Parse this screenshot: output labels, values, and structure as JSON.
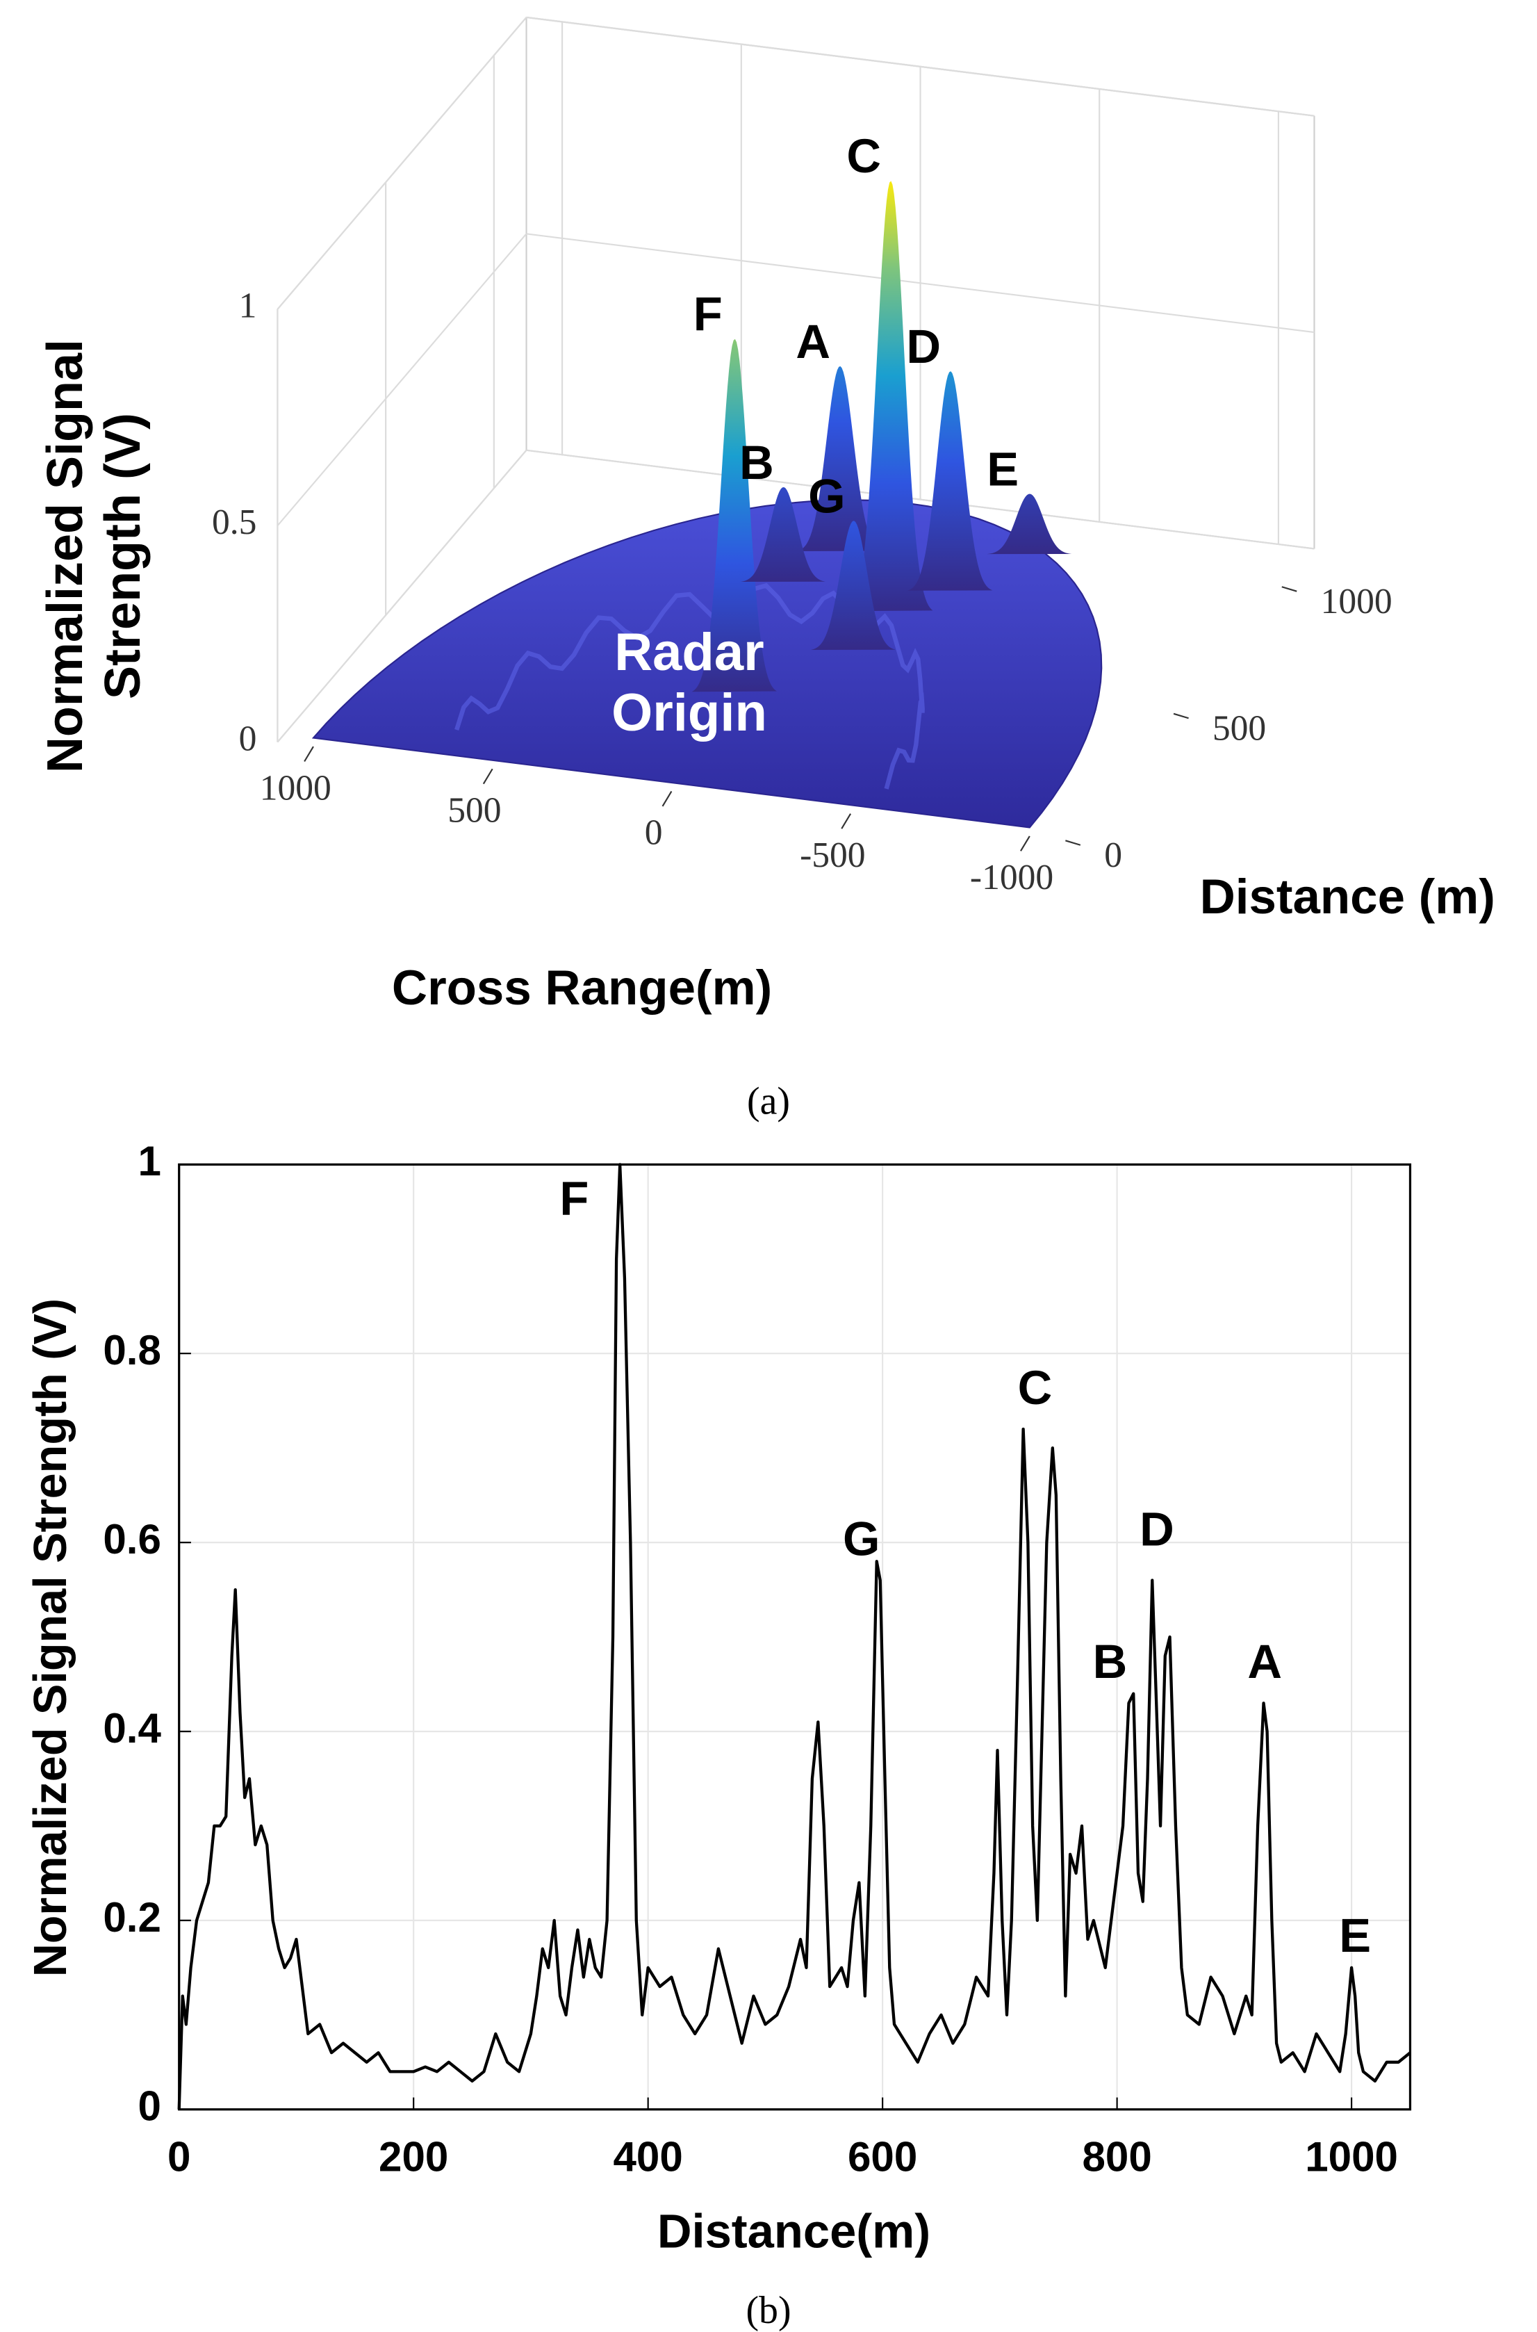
{
  "chart_data": [
    {
      "type": "surface3d",
      "caption": "(a)",
      "xlabel": "Cross Range(m)",
      "ylabel": "Distance (m)",
      "zlabel": "Normalized Signal Strength (V)",
      "xlim": [
        1100,
        -1100
      ],
      "ylim": [
        0,
        1150
      ],
      "zlim": [
        0,
        1
      ],
      "xticks": [
        1000,
        500,
        0,
        -500,
        -1000
      ],
      "yticks": [
        0,
        500,
        1000
      ],
      "zticks": [
        0,
        0.5,
        1
      ],
      "peaks": [
        {
          "label": "F",
          "x": 50,
          "y": 375,
          "z": 0.82,
          "label_color": "#000000"
        },
        {
          "label": "A",
          "x": 89,
          "y": 926,
          "z": 0.43,
          "label_color": "#000000"
        },
        {
          "label": "C",
          "x": -171,
          "y": 730,
          "z": 1.0,
          "label_color": "#000000"
        },
        {
          "label": "D",
          "x": -275,
          "y": 834,
          "z": 0.51,
          "label_color": "#000000"
        },
        {
          "label": "E",
          "x": -394,
          "y": 1003,
          "z": 0.14,
          "label_color": "#000000"
        },
        {
          "label": "B",
          "x": 167,
          "y": 794,
          "z": 0.22,
          "label_color": "#ffffff"
        },
        {
          "label": "G",
          "x": -157,
          "y": 582,
          "z": 0.3,
          "label_color": "#ffffff"
        }
      ],
      "annotation": "Radar Origin"
    },
    {
      "type": "line",
      "caption": "(b)",
      "xlabel": "Distance(m)",
      "ylabel": "Normalized Signal Strength (V)",
      "xlim": [
        0,
        1050
      ],
      "ylim": [
        0,
        1
      ],
      "xticks": [
        0,
        200,
        400,
        600,
        800,
        1000
      ],
      "yticks": [
        0,
        0.2,
        0.4,
        0.6,
        0.8,
        1
      ],
      "grid": true,
      "color": "#000000",
      "x": [
        0,
        3,
        6,
        10,
        15,
        20,
        25,
        30,
        35,
        40,
        45,
        48,
        52,
        56,
        60,
        65,
        70,
        75,
        80,
        85,
        90,
        95,
        100,
        110,
        120,
        130,
        140,
        150,
        160,
        170,
        180,
        190,
        200,
        210,
        220,
        230,
        240,
        250,
        260,
        270,
        280,
        290,
        300,
        305,
        310,
        315,
        320,
        325,
        330,
        335,
        340,
        345,
        350,
        355,
        360,
        365,
        370,
        373,
        376,
        380,
        385,
        390,
        395,
        400,
        410,
        420,
        430,
        440,
        450,
        460,
        470,
        480,
        490,
        500,
        510,
        520,
        530,
        535,
        540,
        545,
        550,
        555,
        560,
        565,
        570,
        575,
        580,
        585,
        590,
        595,
        598,
        602,
        606,
        610,
        620,
        630,
        640,
        650,
        660,
        670,
        680,
        690,
        695,
        698,
        702,
        706,
        710,
        715,
        720,
        724,
        728,
        732,
        736,
        740,
        745,
        748,
        752,
        756,
        760,
        765,
        770,
        775,
        780,
        790,
        800,
        805,
        810,
        814,
        818,
        822,
        826,
        830,
        833,
        837,
        841,
        845,
        850,
        855,
        860,
        870,
        880,
        890,
        900,
        910,
        915,
        920,
        925,
        928,
        932,
        936,
        940,
        950,
        960,
        970,
        980,
        990,
        995,
        1000,
        1003,
        1006,
        1010,
        1020,
        1030,
        1040,
        1050
      ],
      "values": [
        0,
        0.12,
        0.09,
        0.15,
        0.2,
        0.22,
        0.24,
        0.3,
        0.3,
        0.31,
        0.48,
        0.55,
        0.42,
        0.33,
        0.35,
        0.28,
        0.3,
        0.28,
        0.2,
        0.17,
        0.15,
        0.16,
        0.18,
        0.08,
        0.09,
        0.06,
        0.07,
        0.06,
        0.05,
        0.06,
        0.04,
        0.04,
        0.04,
        0.045,
        0.04,
        0.05,
        0.04,
        0.03,
        0.04,
        0.08,
        0.05,
        0.04,
        0.08,
        0.12,
        0.17,
        0.15,
        0.2,
        0.12,
        0.1,
        0.15,
        0.19,
        0.14,
        0.18,
        0.15,
        0.14,
        0.2,
        0.5,
        0.9,
        1.0,
        0.88,
        0.6,
        0.2,
        0.1,
        0.15,
        0.13,
        0.14,
        0.1,
        0.08,
        0.1,
        0.17,
        0.12,
        0.07,
        0.12,
        0.09,
        0.1,
        0.13,
        0.18,
        0.15,
        0.35,
        0.41,
        0.3,
        0.13,
        0.14,
        0.15,
        0.13,
        0.2,
        0.24,
        0.12,
        0.3,
        0.58,
        0.56,
        0.35,
        0.15,
        0.09,
        0.07,
        0.05,
        0.08,
        0.1,
        0.07,
        0.09,
        0.14,
        0.12,
        0.25,
        0.38,
        0.2,
        0.1,
        0.2,
        0.45,
        0.72,
        0.6,
        0.3,
        0.2,
        0.4,
        0.6,
        0.7,
        0.65,
        0.35,
        0.12,
        0.27,
        0.25,
        0.3,
        0.18,
        0.2,
        0.15,
        0.25,
        0.3,
        0.43,
        0.44,
        0.25,
        0.22,
        0.35,
        0.56,
        0.45,
        0.3,
        0.48,
        0.5,
        0.3,
        0.15,
        0.1,
        0.09,
        0.14,
        0.12,
        0.08,
        0.12,
        0.1,
        0.3,
        0.43,
        0.4,
        0.2,
        0.07,
        0.05,
        0.06,
        0.04,
        0.08,
        0.06,
        0.04,
        0.08,
        0.15,
        0.12,
        0.06,
        0.04,
        0.03,
        0.05,
        0.05,
        0.06
      ],
      "annotations": [
        {
          "text": "F",
          "x": 337,
          "y": 0.96
        },
        {
          "text": "G",
          "x": 582,
          "y": 0.6
        },
        {
          "text": "C",
          "x": 730,
          "y": 0.76
        },
        {
          "text": "B",
          "x": 794,
          "y": 0.47
        },
        {
          "text": "D",
          "x": 834,
          "y": 0.61
        },
        {
          "text": "A",
          "x": 926,
          "y": 0.47
        },
        {
          "text": "E",
          "x": 1003,
          "y": 0.18
        }
      ]
    }
  ]
}
